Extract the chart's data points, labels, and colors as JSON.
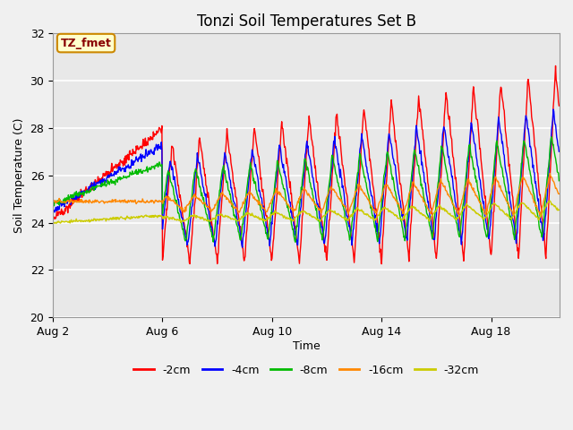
{
  "title": "Tonzi Soil Temperatures Set B",
  "xlabel": "Time",
  "ylabel": "Soil Temperature (C)",
  "ylim": [
    20,
    32
  ],
  "xlim": [
    0,
    18.5
  ],
  "xtick_positions": [
    0,
    4,
    8,
    12,
    16
  ],
  "xtick_labels": [
    "Aug 2",
    "Aug 6",
    "Aug 10",
    "Aug 14",
    "Aug 18"
  ],
  "ytick_positions": [
    20,
    22,
    24,
    26,
    28,
    30,
    32
  ],
  "series_colors": [
    "#ff0000",
    "#0000ff",
    "#00bb00",
    "#ff8800",
    "#cccc00"
  ],
  "series_labels": [
    "-2cm",
    "-4cm",
    "-8cm",
    "-16cm",
    "-32cm"
  ],
  "plot_bg_color": "#e8e8e8",
  "fig_bg_color": "#f0f0f0",
  "annotation_text": "TZ_fmet",
  "annotation_bg": "#ffffcc",
  "annotation_border": "#cc8800",
  "figsize": [
    6.4,
    4.8
  ],
  "dpi": 100
}
